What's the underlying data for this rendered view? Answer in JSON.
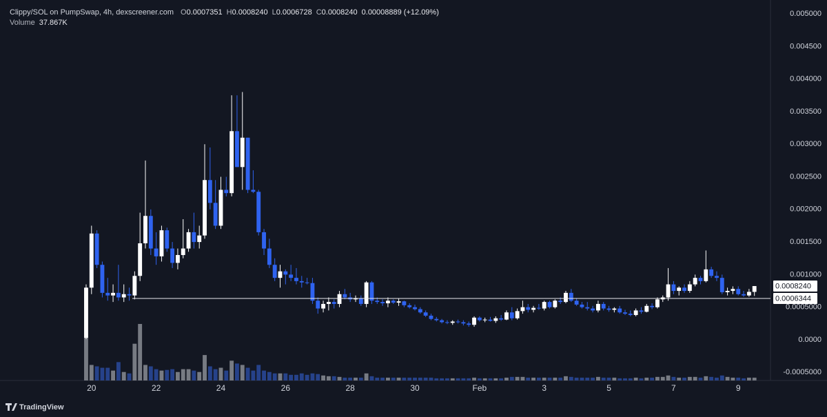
{
  "chart_data": {
    "type": "candlestick",
    "title": "Clippy/SOL on PumpSwap, 4h, dexscreener.com",
    "ohlc_legend": [
      {
        "key": "O",
        "text": "0.0007351"
      },
      {
        "key": "H",
        "text": "0.0008240"
      },
      {
        "key": "L",
        "text": "0.0006728"
      },
      {
        "key": "C",
        "text": "0.0008240"
      }
    ],
    "change_label": "0.00008889 (+12.09%)",
    "volume_name": "Volume",
    "volume_label": "37.867K",
    "up_color": "#ffffff",
    "down_color": "#2f63f0",
    "volume_up_color": "#8a8d94",
    "volume_down_color": "#2a4a9c",
    "xlim": [
      -15.98,
      126.98
    ],
    "xticks": [
      {
        "value": 1,
        "label": "20"
      },
      {
        "value": 13,
        "label": "22"
      },
      {
        "value": 25,
        "label": "24"
      },
      {
        "value": 37,
        "label": "26"
      },
      {
        "value": 49,
        "label": "28"
      },
      {
        "value": 61,
        "label": "30"
      },
      {
        "value": 73,
        "label": "Feb"
      },
      {
        "value": 85,
        "label": "3"
      },
      {
        "value": 97,
        "label": "5"
      },
      {
        "value": 109,
        "label": "7"
      },
      {
        "value": 121,
        "label": "9"
      }
    ],
    "ylim": [
      -0.000624,
      0.005212
    ],
    "yticks": [
      {
        "value": 0.005,
        "label": "0.005000"
      },
      {
        "value": 0.0045,
        "label": "0.004500"
      },
      {
        "value": 0.004,
        "label": "0.004000"
      },
      {
        "value": 0.0035,
        "label": "0.003500"
      },
      {
        "value": 0.003,
        "label": "0.003000"
      },
      {
        "value": 0.0025,
        "label": "0.002500"
      },
      {
        "value": 0.002,
        "label": "0.002000"
      },
      {
        "value": 0.0015,
        "label": "0.001500"
      },
      {
        "value": 0.001,
        "label": "0.001000"
      },
      {
        "value": 0.0005,
        "label": "0.0005000"
      },
      {
        "value": 0,
        "label": "0.0000"
      },
      {
        "value": -0.0005,
        "label": "-0.0005000"
      }
    ],
    "price_lines": [
      {
        "value": 0.000824,
        "label": "0.0008240",
        "line": false
      },
      {
        "value": 0.0006344,
        "label": "0.0006344",
        "line": true
      }
    ],
    "candles": {
      "open": [
        3e-05,
        0.0008,
        0.00163,
        0.00115,
        0.00072,
        0.00068,
        0.00072,
        0.00065,
        0.0007,
        0.00068,
        0.00098,
        0.00148,
        0.0019,
        0.0014,
        0.00128,
        0.00168,
        0.0014,
        0.00118,
        0.0013,
        0.0014,
        0.00165,
        0.0015,
        0.0016,
        0.00245,
        0.0021,
        0.00175,
        0.0023,
        0.00225,
        0.0032,
        0.00265,
        0.0031,
        0.0023,
        0.00227,
        0.00165,
        0.0014,
        0.00115,
        0.00095,
        0.00105,
        0.001,
        0.00095,
        0.0009,
        0.00088,
        0.00087,
        0.0006,
        0.00048,
        0.00055,
        0.00058,
        0.00055,
        0.0007,
        0.00065,
        0.00062,
        0.00064,
        0.00055,
        0.00088,
        0.0006,
        0.00058,
        0.00056,
        0.0006,
        0.00057,
        0.00059,
        0.00053,
        0.0005,
        0.00047,
        0.00042,
        0.00037,
        0.00032,
        0.0003,
        0.00027,
        0.00026,
        0.00028,
        0.00027,
        0.00025,
        0.00023,
        0.00034,
        0.0003,
        0.00031,
        0.00029,
        0.00033,
        0.00031,
        0.00042,
        0.00033,
        0.00044,
        0.0005,
        0.00046,
        0.00049,
        0.00048,
        0.00058,
        0.0005,
        0.0006,
        0.00058,
        0.00072,
        0.0006,
        0.00054,
        0.0005,
        0.00048,
        0.00045,
        0.00055,
        0.00048,
        0.00046,
        0.00048,
        0.00042,
        0.0004,
        0.00038,
        0.00045,
        0.00043,
        0.00052,
        0.0005,
        0.00062,
        0.00065,
        0.00085,
        0.00075,
        0.0008,
        0.00075,
        0.00085,
        0.00095,
        0.0009,
        0.00108,
        0.00098,
        0.00095,
        0.00073,
        0.00075,
        0.00078,
        0.0007,
        0.00068,
        0.0007351
      ],
      "high": [
        0.00085,
        0.00175,
        0.00168,
        0.0012,
        0.00095,
        0.00085,
        0.00115,
        0.00085,
        0.0008,
        0.00105,
        0.00195,
        0.00275,
        0.002,
        0.00165,
        0.00175,
        0.00172,
        0.0015,
        0.0014,
        0.00185,
        0.0017,
        0.00195,
        0.00175,
        0.003,
        0.00295,
        0.00245,
        0.0025,
        0.0025,
        0.00375,
        0.00375,
        0.0038,
        0.0031,
        0.0026,
        0.0023,
        0.0017,
        0.00155,
        0.00125,
        0.00115,
        0.00108,
        0.00115,
        0.0011,
        0.00098,
        0.00095,
        0.00095,
        0.00065,
        0.0006,
        0.00065,
        0.00062,
        0.00075,
        0.00078,
        0.00072,
        0.00068,
        0.00068,
        0.0009,
        0.0009,
        0.00065,
        0.00062,
        0.00065,
        0.00062,
        0.00063,
        0.0006,
        0.00056,
        0.00054,
        0.0005,
        0.00045,
        0.0004,
        0.00035,
        0.00032,
        0.0003,
        0.0003,
        0.00031,
        0.0003,
        0.00028,
        0.00036,
        0.00036,
        0.00034,
        0.00035,
        0.00036,
        0.00038,
        0.00045,
        0.0005,
        0.00048,
        0.0006,
        0.00055,
        0.00052,
        0.00055,
        0.0006,
        0.0006,
        0.00062,
        0.00065,
        0.00075,
        0.00078,
        0.00064,
        0.00058,
        0.00058,
        0.00052,
        0.0006,
        0.00058,
        0.00052,
        0.0005,
        0.00052,
        0.00046,
        0.00045,
        0.00048,
        0.0005,
        0.00055,
        0.00056,
        0.00065,
        0.00068,
        0.0011,
        0.0009,
        0.00082,
        0.00085,
        0.0009,
        0.001,
        0.00098,
        0.00137,
        0.00112,
        0.00105,
        0.001,
        0.0008,
        0.00082,
        0.00082,
        0.00075,
        0.00078,
        0.000824
      ],
      "low": [
        1e-05,
        0.0007,
        0.0011,
        0.00065,
        0.0006,
        0.00058,
        0.0006,
        0.00058,
        0.0006,
        0.00062,
        0.0009,
        0.0014,
        0.0013,
        0.00115,
        0.0012,
        0.00135,
        0.0011,
        0.00108,
        0.00125,
        0.00135,
        0.0014,
        0.0014,
        0.00155,
        0.002,
        0.0017,
        0.0017,
        0.0022,
        0.0022,
        0.00265,
        0.0023,
        0.00225,
        0.00225,
        0.0016,
        0.0013,
        0.0011,
        0.0009,
        0.0008,
        0.00085,
        0.0009,
        0.00085,
        0.0008,
        0.00085,
        0.00055,
        0.0004,
        0.00042,
        0.00045,
        0.00048,
        0.0005,
        0.00062,
        0.00058,
        0.00058,
        0.00052,
        0.0005,
        0.00055,
        0.00055,
        0.00052,
        0.0005,
        0.00055,
        0.00052,
        0.0005,
        0.00048,
        0.00045,
        0.0004,
        0.00035,
        0.0003,
        0.00028,
        0.00025,
        0.00024,
        0.00023,
        0.00025,
        0.00022,
        0.0002,
        0.0002,
        0.00028,
        0.00027,
        0.00028,
        0.00026,
        0.00029,
        0.0003,
        0.0003,
        0.00031,
        0.0004,
        0.00042,
        0.00042,
        0.00046,
        0.00045,
        0.00048,
        0.00048,
        0.00055,
        0.00056,
        0.00058,
        0.00052,
        0.00048,
        0.00045,
        0.00042,
        0.00042,
        0.00045,
        0.00043,
        0.00042,
        0.0004,
        0.00038,
        0.00036,
        0.00036,
        0.0004,
        0.00042,
        0.00047,
        0.00048,
        0.00058,
        0.0006,
        0.0007,
        0.00068,
        0.00072,
        0.00072,
        0.00082,
        0.00085,
        0.00088,
        0.00095,
        0.0009,
        0.0007,
        0.00068,
        0.0007,
        0.00068,
        0.00066,
        0.00066,
        0.0006728
      ],
      "close": [
        0.0008,
        0.00163,
        0.00115,
        0.00072,
        0.00068,
        0.00072,
        0.00065,
        0.0007,
        0.00068,
        0.00098,
        0.00148,
        0.0019,
        0.0014,
        0.00128,
        0.00168,
        0.0014,
        0.00118,
        0.0013,
        0.0014,
        0.00165,
        0.0015,
        0.0016,
        0.00245,
        0.0021,
        0.00175,
        0.0023,
        0.00225,
        0.0032,
        0.00265,
        0.0031,
        0.0023,
        0.00227,
        0.00165,
        0.0014,
        0.00115,
        0.00095,
        0.00105,
        0.001,
        0.00095,
        0.0009,
        0.00088,
        0.00087,
        0.0006,
        0.00048,
        0.00055,
        0.00058,
        0.00055,
        0.0007,
        0.00065,
        0.00062,
        0.00064,
        0.00055,
        0.00088,
        0.0006,
        0.00058,
        0.00056,
        0.0006,
        0.00057,
        0.00059,
        0.00053,
        0.0005,
        0.00047,
        0.00042,
        0.00037,
        0.00032,
        0.0003,
        0.00027,
        0.00026,
        0.00028,
        0.00027,
        0.00025,
        0.00023,
        0.00034,
        0.0003,
        0.00031,
        0.00029,
        0.00033,
        0.00031,
        0.00042,
        0.00033,
        0.00044,
        0.0005,
        0.00046,
        0.00049,
        0.00048,
        0.00058,
        0.0005,
        0.0006,
        0.00058,
        0.00072,
        0.0006,
        0.00054,
        0.0005,
        0.00048,
        0.00045,
        0.00055,
        0.00048,
        0.00046,
        0.00048,
        0.00042,
        0.0004,
        0.00038,
        0.00045,
        0.00043,
        0.00052,
        0.0005,
        0.00062,
        0.00065,
        0.00085,
        0.00075,
        0.0008,
        0.00075,
        0.00085,
        0.00095,
        0.0009,
        0.00108,
        0.00098,
        0.00095,
        0.00073,
        0.00075,
        0.00078,
        0.0007,
        0.00068,
        0.0007351,
        0.000824
      ],
      "volume": [
        589000,
        209000,
        190000,
        171000,
        171000,
        133000,
        247000,
        114000,
        95000,
        494000,
        760000,
        209000,
        190000,
        152000,
        133000,
        142000,
        152000,
        114000,
        152000,
        152000,
        133000,
        114000,
        342000,
        190000,
        152000,
        171000,
        133000,
        266000,
        228000,
        209000,
        171000,
        133000,
        209000,
        133000,
        114000,
        95000,
        95000,
        95000,
        76000,
        76000,
        95000,
        76000,
        95000,
        86000,
        67000,
        57000,
        57000,
        48000,
        38000,
        38000,
        38000,
        38000,
        95000,
        57000,
        38000,
        38000,
        38000,
        38000,
        38000,
        38000,
        38000,
        38000,
        38000,
        38000,
        38000,
        29000,
        29000,
        29000,
        29000,
        29000,
        29000,
        29000,
        38000,
        29000,
        29000,
        29000,
        29000,
        29000,
        38000,
        48000,
        48000,
        48000,
        38000,
        38000,
        38000,
        38000,
        38000,
        38000,
        38000,
        57000,
        48000,
        38000,
        38000,
        38000,
        38000,
        48000,
        38000,
        38000,
        38000,
        29000,
        29000,
        29000,
        38000,
        29000,
        38000,
        38000,
        48000,
        48000,
        67000,
        48000,
        38000,
        38000,
        48000,
        48000,
        38000,
        57000,
        48000,
        38000,
        67000,
        48000,
        38000,
        38000,
        29000,
        38000,
        37867
      ]
    },
    "watermark": "TradingView"
  }
}
